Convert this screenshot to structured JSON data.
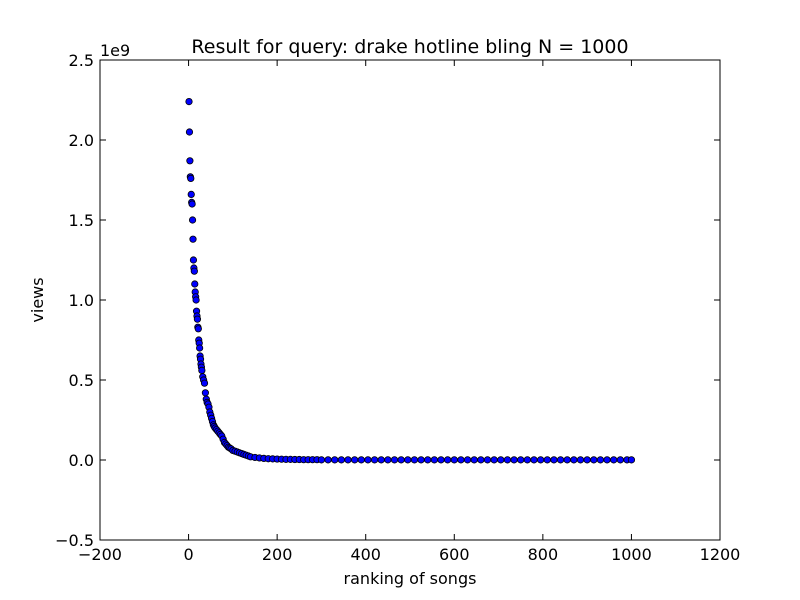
{
  "chart_data": {
    "type": "scatter",
    "title": "Result for query: drake hotline bling N = 1000",
    "xlabel": "ranking of songs",
    "ylabel": "views",
    "y_offset_label": "1e9",
    "xlim": [
      -200,
      1200
    ],
    "ylim": [
      -0.5,
      2.5
    ],
    "x_ticks": [
      -200,
      0,
      200,
      400,
      600,
      800,
      1000,
      1200
    ],
    "x_tick_labels": [
      "−200",
      "0",
      "200",
      "400",
      "600",
      "800",
      "1000",
      "1200"
    ],
    "y_ticks": [
      -0.5,
      0.0,
      0.5,
      1.0,
      1.5,
      2.0,
      2.5
    ],
    "y_tick_labels": [
      "−0.5",
      "0.0",
      "0.5",
      "1.0",
      "1.5",
      "2.0",
      "2.5"
    ],
    "grid": false,
    "marker_color": "#0000ff",
    "marker_edge_color": "#000000",
    "series": [
      {
        "x": [
          1,
          2,
          3,
          4,
          5,
          6,
          7,
          8,
          9,
          10,
          11,
          12,
          13,
          14,
          15,
          16,
          17,
          18,
          19,
          20,
          21,
          22,
          23,
          24,
          25,
          26,
          27,
          28,
          29,
          30,
          32,
          34,
          36,
          38,
          40,
          42,
          44,
          46,
          48,
          50,
          52,
          54,
          56,
          58,
          60,
          63,
          66,
          69,
          72,
          75,
          78,
          81,
          84,
          87,
          90,
          93,
          96,
          100,
          105,
          110,
          115,
          120,
          125,
          130,
          135,
          140,
          150,
          160,
          170,
          180,
          190,
          200,
          210,
          220,
          230,
          240,
          250,
          260,
          270,
          280,
          290,
          300,
          315,
          330,
          345,
          360,
          375,
          390,
          405,
          420,
          435,
          450,
          465,
          480,
          495,
          510,
          525,
          540,
          555,
          570,
          585,
          600,
          615,
          630,
          645,
          660,
          675,
          690,
          705,
          720,
          735,
          750,
          765,
          780,
          795,
          810,
          825,
          840,
          855,
          870,
          885,
          900,
          915,
          930,
          945,
          960,
          975,
          990,
          1000
        ],
        "y": [
          2.24,
          2.05,
          1.87,
          1.77,
          1.76,
          1.66,
          1.61,
          1.6,
          1.5,
          1.38,
          1.25,
          1.2,
          1.18,
          1.1,
          1.05,
          1.02,
          1.0,
          0.93,
          0.9,
          0.88,
          0.83,
          0.82,
          0.75,
          0.73,
          0.7,
          0.65,
          0.63,
          0.6,
          0.58,
          0.56,
          0.52,
          0.5,
          0.48,
          0.42,
          0.38,
          0.36,
          0.35,
          0.33,
          0.3,
          0.28,
          0.26,
          0.24,
          0.22,
          0.21,
          0.2,
          0.19,
          0.18,
          0.17,
          0.16,
          0.15,
          0.13,
          0.11,
          0.1,
          0.09,
          0.08,
          0.075,
          0.07,
          0.06,
          0.055,
          0.05,
          0.045,
          0.04,
          0.035,
          0.03,
          0.025,
          0.02,
          0.016,
          0.013,
          0.01,
          0.008,
          0.007,
          0.006,
          0.005,
          0.004,
          0.004,
          0.003,
          0.003,
          0.002,
          0.002,
          0.002,
          0.002,
          0.001,
          0.001,
          0.001,
          0.001,
          0.001,
          0.001,
          0.001,
          0.001,
          0.001,
          0.001,
          0.001,
          0.001,
          0.001,
          0.001,
          0.001,
          0.001,
          0.001,
          0.001,
          0.001,
          0.001,
          0.001,
          0.001,
          0.001,
          0.001,
          0.001,
          0.001,
          0.001,
          0.001,
          0.001,
          0.001,
          0.001,
          0.001,
          0.001,
          0.001,
          0.001,
          0.001,
          0.001,
          0.001,
          0.001,
          0.001,
          0.001,
          0.001,
          0.001,
          0.001,
          0.001,
          0.001,
          0.001,
          0.001
        ]
      }
    ]
  }
}
